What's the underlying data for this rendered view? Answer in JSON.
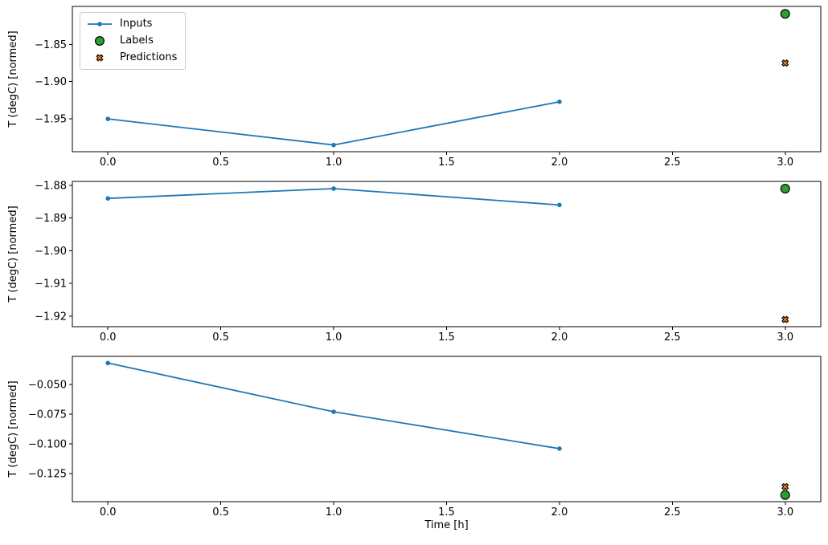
{
  "figure": {
    "background": "#ffffff",
    "xlabel": "Time [h]",
    "ylabel": "T (degC) [normed]",
    "colors": {
      "inputs": "#1f77b4",
      "labels": "#2ca02c",
      "predictions": "#ff7f0e",
      "marker_edge": "#000000",
      "spine": "#000000",
      "text": "#000000",
      "legend_edge": "#cccccc"
    },
    "legend": {
      "position": "upper left",
      "items": [
        {
          "label": "Inputs",
          "marker": "line-dot"
        },
        {
          "label": "Labels",
          "marker": "filled-circle"
        },
        {
          "label": "Predictions",
          "marker": "filled-x"
        }
      ]
    }
  },
  "chart_data": [
    {
      "type": "line",
      "title": "",
      "xlabel": "",
      "ylabel": "T (degC) [normed]",
      "xlim": [
        -0.1575,
        3.1575
      ],
      "ylim": [
        -1.994,
        -1.799
      ],
      "xticks": [
        0.0,
        0.5,
        1.0,
        1.5,
        2.0,
        2.5,
        3.0
      ],
      "xtick_labels": [
        "0.0",
        "0.5",
        "1.0",
        "1.5",
        "2.0",
        "2.5",
        "3.0"
      ],
      "show_xtick_labels": true,
      "yticks": [
        -1.85,
        -1.9,
        -1.95
      ],
      "ytick_labels": [
        "−1.85",
        "−1.90",
        "−1.95"
      ],
      "grid": false,
      "series": [
        {
          "name": "Inputs",
          "kind": "line+marker",
          "x": [
            0,
            1,
            2
          ],
          "y": [
            -1.95,
            -1.985,
            -1.927
          ]
        },
        {
          "name": "Labels",
          "kind": "scatter-circle",
          "x": [
            3
          ],
          "y": [
            -1.809
          ]
        },
        {
          "name": "Predictions",
          "kind": "scatter-x",
          "x": [
            3
          ],
          "y": [
            -1.875
          ]
        }
      ]
    },
    {
      "type": "line",
      "title": "",
      "xlabel": "",
      "ylabel": "T (degC) [normed]",
      "xlim": [
        -0.1575,
        3.1575
      ],
      "ylim": [
        -1.9232,
        -1.8788
      ],
      "xticks": [
        0.0,
        0.5,
        1.0,
        1.5,
        2.0,
        2.5,
        3.0
      ],
      "xtick_labels": [
        "0.0",
        "0.5",
        "1.0",
        "1.5",
        "2.0",
        "2.5",
        "3.0"
      ],
      "show_xtick_labels": true,
      "yticks": [
        -1.88,
        -1.89,
        -1.9,
        -1.91,
        -1.92
      ],
      "ytick_labels": [
        "−1.88",
        "−1.89",
        "−1.90",
        "−1.91",
        "−1.92"
      ],
      "grid": false,
      "series": [
        {
          "name": "Inputs",
          "kind": "line+marker",
          "x": [
            0,
            1,
            2
          ],
          "y": [
            -1.884,
            -1.881,
            -1.886
          ]
        },
        {
          "name": "Labels",
          "kind": "scatter-circle",
          "x": [
            3
          ],
          "y": [
            -1.881
          ]
        },
        {
          "name": "Predictions",
          "kind": "scatter-x",
          "x": [
            3
          ],
          "y": [
            -1.921
          ]
        }
      ]
    },
    {
      "type": "line",
      "title": "",
      "xlabel": "Time [h]",
      "ylabel": "T (degC) [normed]",
      "xlim": [
        -0.1575,
        3.1575
      ],
      "ylim": [
        -0.1486,
        -0.0264
      ],
      "xticks": [
        0.0,
        0.5,
        1.0,
        1.5,
        2.0,
        2.5,
        3.0
      ],
      "xtick_labels": [
        "0.0",
        "0.5",
        "1.0",
        "1.5",
        "2.0",
        "2.5",
        "3.0"
      ],
      "show_xtick_labels": true,
      "yticks": [
        -0.05,
        -0.075,
        -0.1,
        -0.125
      ],
      "ytick_labels": [
        "−0.050",
        "−0.075",
        "−0.100",
        "−0.125"
      ],
      "grid": false,
      "series": [
        {
          "name": "Inputs",
          "kind": "line+marker",
          "x": [
            0,
            1,
            2
          ],
          "y": [
            -0.032,
            -0.073,
            -0.104
          ]
        },
        {
          "name": "Labels",
          "kind": "scatter-circle",
          "x": [
            3
          ],
          "y": [
            -0.143
          ]
        },
        {
          "name": "Predictions",
          "kind": "scatter-x",
          "x": [
            3
          ],
          "y": [
            -0.136
          ]
        }
      ]
    }
  ]
}
